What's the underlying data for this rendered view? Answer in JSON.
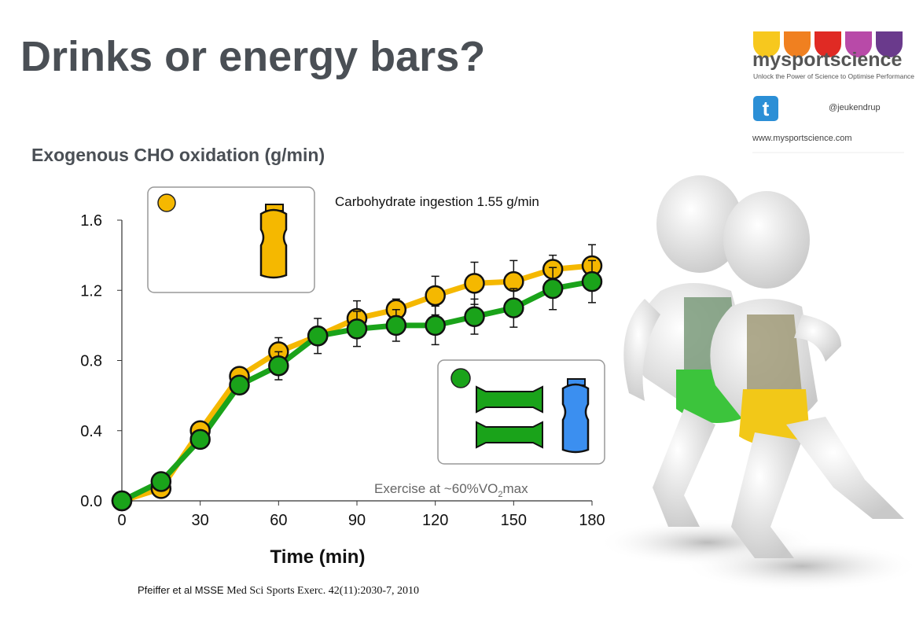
{
  "title": "Drinks or energy bars?",
  "logo": {
    "name": "mysportscience",
    "tagline": "Unlock the Power of Science to Optimise Performance",
    "twitter": "@jeukendrup",
    "website": "www.mysportscience.com"
  },
  "chart_data": {
    "type": "line",
    "title": "Exogenous CHO oxidation (g/min)",
    "x_label": "Time (min)",
    "x": [
      0,
      15,
      30,
      45,
      60,
      75,
      90,
      105,
      120,
      135,
      150,
      165,
      180
    ],
    "xlim": [
      0,
      180
    ],
    "xticks": [
      0,
      30,
      60,
      90,
      120,
      150,
      180
    ],
    "ylim": [
      0,
      1.6
    ],
    "yticks": [
      {
        "value": 0,
        "label": "0.0"
      },
      0.4,
      0.8,
      1.2,
      1.6
    ],
    "series": [
      {
        "color": "#f5b800",
        "values": [
          0,
          0.07,
          0.4,
          0.71,
          0.85,
          0.94,
          1.04,
          1.09,
          1.17,
          1.24,
          1.25,
          1.32,
          1.34
        ],
        "errors": [
          0,
          0.02,
          0.03,
          0.03,
          0.08,
          0.04,
          0.1,
          0.06,
          0.11,
          0.12,
          0.12,
          0.08,
          0.12
        ]
      },
      {
        "color": "#1aa31a",
        "values": [
          0,
          0.11,
          0.35,
          0.66,
          0.77,
          0.94,
          0.98,
          1.0,
          1.0,
          1.05,
          1.1,
          1.21,
          1.25
        ],
        "errors": [
          0,
          0.03,
          0.03,
          0.03,
          0.08,
          0.1,
          0.1,
          0.09,
          0.11,
          0.1,
          0.11,
          0.12,
          0.12
        ]
      }
    ],
    "annotations": {
      "ingestion": "Carbohydrate ingestion 1.55 g/min",
      "exercise": [
        "Exercise at ~60%VO",
        "2",
        "max"
      ]
    }
  },
  "citation": [
    "Pfeiffer et al MSSE",
    "Med Sci Sports Exerc. 42(11):2030-7, 2010"
  ]
}
